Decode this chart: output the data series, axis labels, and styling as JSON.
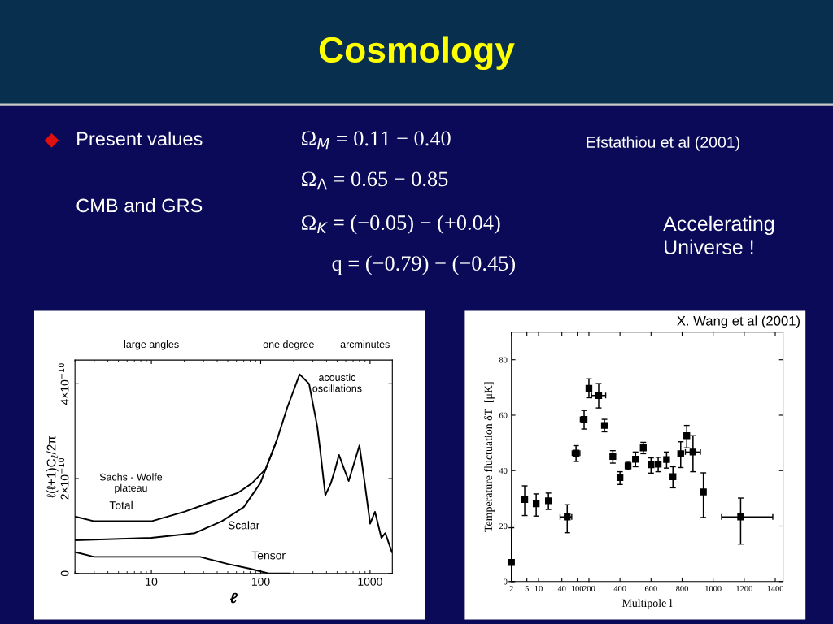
{
  "chart_data": [
    {
      "type": "other",
      "title": "Cosmology",
      "annotations": [
        "Present values",
        "CMB and GRS",
        "Ω$_{M}$ = 0.11 − 0.40",
        "Ω$_{Λ}$ = 0.65 − 0.85",
        "Ω$_{K}$ = (−0.05) − (+0.04)",
        "q = (−0.79) − (−0.45)",
        "Efstathiou et al (2001)",
        "Accelerating\nUniverse !"
      ]
    },
    {
      "type": "line",
      "xlabel": "ℓ",
      "ylabel": "ℓ(ℓ+1)C$_{ℓ}$/2π",
      "log": "x",
      "xlim": [
        2,
        1600
      ],
      "xticks": [
        10,
        100,
        1000
      ],
      "ylim": [
        0,
        4.5e-10
      ],
      "yticks": [
        0,
        {
          "value": 2e-10,
          "label": "2×10$^{−10}$"
        },
        {
          "value": 4e-10,
          "label": "4×10$^{−10}$"
        }
      ],
      "series": [
        {
          "name": "Total",
          "color": "#000000",
          "x": [
            2,
            3,
            5.3,
            10,
            20,
            35,
            62,
            83,
            111,
            140,
            175,
            227,
            277,
            329,
            350,
            390,
            438,
            480,
            520,
            580,
            638,
            710,
            800,
            895,
            1003,
            1110,
            1270,
            1380,
            1585
          ],
          "values": [
            1.2e-10,
            1.1e-10,
            1.1e-10,
            1.1e-10,
            1.3e-10,
            1.5e-10,
            1.7e-10,
            1.9e-10,
            2.2e-10,
            2.8e-10,
            3.5e-10,
            4.2e-10,
            4e-10,
            3.1e-10,
            2.6e-10,
            1.65e-10,
            1.9e-10,
            2.2e-10,
            2.5e-10,
            2.2e-10,
            1.95e-10,
            2.3e-10,
            2.7e-10,
            1.9e-10,
            1.05e-10,
            1.3e-10,
            7.5e-11,
            8.5e-11,
            4.5e-11
          ]
        },
        {
          "name": "Scalar",
          "color": "#000000",
          "x": [
            2,
            10,
            25,
            44,
            70,
            99,
            140
          ],
          "values": [
            7e-11,
            7.5e-11,
            8.5e-11,
            1.1e-10,
            1.4e-10,
            1.9e-10,
            2.8e-10
          ]
        },
        {
          "name": "Tensor",
          "color": "#000000",
          "x": [
            2,
            3,
            10,
            28,
            50,
            80,
            118,
            185
          ],
          "values": [
            4.5e-11,
            3.5e-11,
            3.5e-11,
            3.5e-11,
            2e-11,
            1e-11,
            0,
            0
          ]
        }
      ],
      "annotations": [
        "large angles",
        "one degree",
        "arcminutes",
        "acoustic\noscillations",
        "Sachs - Wolfe\nplateau"
      ]
    },
    {
      "type": "scatter",
      "ylabel": "Temperature fluctuation δT  [μK]",
      "marker": "square",
      "color": "#000000",
      "log": "x",
      "xlim": [
        2,
        200
      ],
      "xticks": [
        2,
        5,
        10,
        40,
        100,
        200
      ],
      "ylim": [
        0,
        90
      ],
      "yticks": [
        0,
        20,
        40,
        60,
        80
      ],
      "x": [
        2,
        4.4,
        8.7,
        18,
        55,
        93,
        150,
        200
      ],
      "values": [
        6.9,
        29.6,
        28.0,
        29.1,
        23.3,
        46.3,
        58.5,
        69.7
      ],
      "errors": [
        [
          0,
          19.4
        ],
        [
          23.8,
          34.5
        ],
        [
          23.6,
          31.6
        ],
        [
          26.0,
          31.9
        ],
        [
          17.6,
          27.7
        ],
        [
          43.3,
          49.0
        ],
        [
          55.0,
          61.7
        ],
        [
          66.3,
          73.1
        ]
      ],
      "xerrors": [
        null,
        null,
        null,
        null,
        [
          36,
          72
        ],
        [
          74,
          117
        ],
        [
          120,
          166
        ],
        [
          188,
          214
        ]
      ]
    },
    {
      "type": "scatter",
      "xlabel": "Multipole l",
      "marker": "square",
      "color": "#000000",
      "xlim": [
        200,
        1450
      ],
      "xticks": [
        400,
        600,
        800,
        1000,
        1200,
        1400
      ],
      "ylim": [
        0,
        90
      ],
      "yticks": [
        0,
        20,
        40,
        60,
        80
      ],
      "tick_labels": "x",
      "x": [
        263,
        300,
        354,
        400,
        452,
        500,
        550,
        600,
        646,
        700,
        741,
        791,
        830,
        870,
        937,
        1177
      ],
      "values": [
        67.1,
        56.3,
        45.1,
        37.5,
        41.7,
        44.1,
        48.2,
        42.1,
        42.3,
        44.0,
        37.8,
        46.1,
        52.6,
        46.7,
        32.3,
        23.3
      ],
      "errors": [
        [
          62.6,
          71.4
        ],
        [
          54.0,
          58.5
        ],
        [
          42.7,
          47.2
        ],
        [
          35.0,
          39.6
        ],
        [
          40.4,
          43.0
        ],
        [
          41.4,
          46.7
        ],
        [
          46.1,
          50.2
        ],
        [
          39.1,
          44.6
        ],
        [
          39.6,
          44.8
        ],
        [
          40.9,
          46.7
        ],
        [
          33.8,
          41.4
        ],
        [
          41.1,
          50.4
        ],
        [
          48.2,
          56.3
        ],
        [
          39.6,
          52.6
        ],
        [
          23.1,
          39.2
        ],
        [
          13.5,
          30.1
        ]
      ],
      "xerrors": [
        [
          217,
          308
        ],
        null,
        null,
        null,
        null,
        null,
        null,
        null,
        null,
        null,
        null,
        null,
        null,
        [
          821,
          918
        ],
        null,
        [
          1054,
          1384
        ]
      ],
      "annotations": [
        "X. Wang et al (2001)"
      ]
    }
  ]
}
